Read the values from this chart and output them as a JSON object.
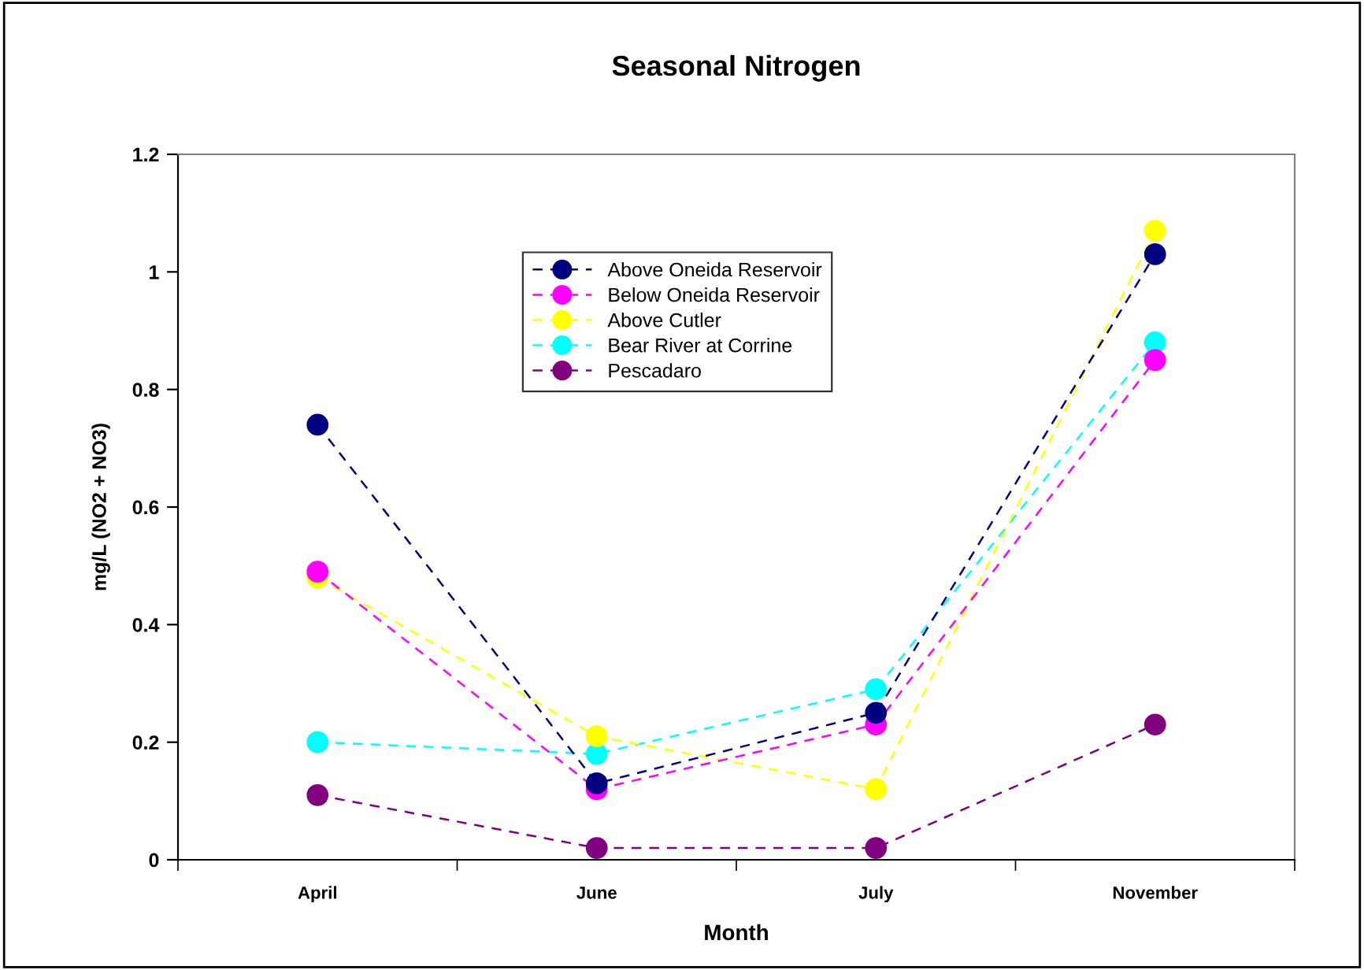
{
  "chart_data": {
    "type": "line",
    "title": "Seasonal Nitrogen",
    "xlabel": "Month",
    "ylabel": "mg/L (NO2 + NO3)",
    "categories": [
      "April",
      "June",
      "July",
      "November"
    ],
    "series": [
      {
        "name": "Above Oneida Reservoir",
        "color": "#000080",
        "values": [
          0.74,
          0.13,
          0.25,
          1.03
        ]
      },
      {
        "name": "Below Oneida Reservoir",
        "color": "#ff00ff",
        "values": [
          0.49,
          0.12,
          0.23,
          0.85
        ]
      },
      {
        "name": "Above Cutler",
        "color": "#ffff00",
        "values": [
          0.48,
          0.21,
          0.12,
          1.07
        ]
      },
      {
        "name": "Bear River at Corrine",
        "color": "#00ffff",
        "values": [
          0.2,
          0.18,
          0.29,
          0.88
        ]
      },
      {
        "name": "Pescadaro",
        "color": "#800080",
        "values": [
          0.11,
          0.02,
          0.02,
          0.23
        ]
      }
    ],
    "ylim": [
      0,
      1.2
    ],
    "yticks": [
      {
        "value": 0,
        "label": "0"
      },
      0.2,
      0.4,
      0.6,
      0.8,
      {
        "value": 1,
        "label": "1"
      },
      1.2
    ],
    "grid": false,
    "legend": "top",
    "marker": "circle",
    "line_style": "dashed"
  }
}
